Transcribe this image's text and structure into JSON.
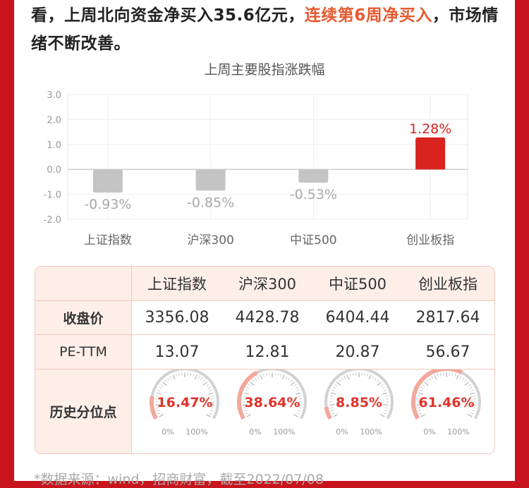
{
  "intro": {
    "part1": "看，上周北向资金净买入35.6亿元，",
    "highlight": "连续第6周净买入",
    "part2": "，市场情绪不断改善。"
  },
  "chart_data": {
    "type": "bar",
    "title": "上周主要股指涨跌幅",
    "categories": [
      "上证指数",
      "沪深300",
      "中证500",
      "创业板指"
    ],
    "values": [
      -0.93,
      -0.85,
      -0.53,
      1.28
    ],
    "value_labels": [
      "-0.93%",
      "-0.85%",
      "-0.53%",
      "1.28%"
    ],
    "ylim": [
      -2.0,
      3.0
    ],
    "yticks": [
      "3.0",
      "2.0",
      "1.0",
      "0.0",
      "-1.0",
      "-2.0"
    ],
    "ytick_values": [
      3,
      2,
      1,
      0,
      -1,
      -2
    ],
    "grid": true,
    "colors": {
      "negative": "#c4c4c4",
      "positive": "#d9231e",
      "negative_label": "#a8a8a8",
      "positive_label": "#d9231e"
    }
  },
  "table": {
    "headers": [
      "上证指数",
      "沪深300",
      "中证500",
      "创业板指"
    ],
    "rows": [
      {
        "label": "收盘价",
        "values": [
          "3356.08",
          "4428.78",
          "6404.44",
          "2817.64"
        ]
      },
      {
        "label": "PE-TTM",
        "values": [
          "13.07",
          "12.81",
          "20.87",
          "56.67"
        ]
      }
    ],
    "percentile_label": "历史分位点",
    "percentiles": [
      {
        "text": "16.47%",
        "value": 0.1647
      },
      {
        "text": "38.64%",
        "value": 0.3864
      },
      {
        "text": "8.85%",
        "value": 0.0885
      },
      {
        "text": "61.46%",
        "value": 0.6146
      }
    ],
    "gauge_min_label": "0%",
    "gauge_max_label": "100%"
  },
  "footer": "*数据来源：wind，招商财富，截至2022/07/08"
}
